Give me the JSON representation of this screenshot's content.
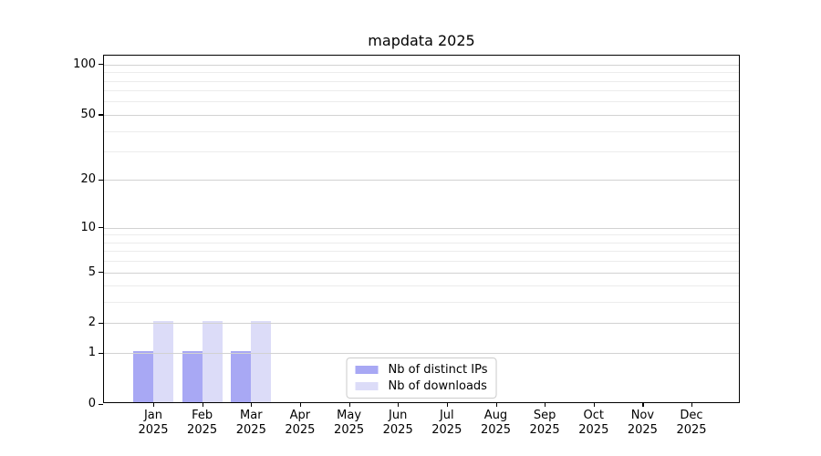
{
  "chart_data": {
    "type": "bar",
    "title": "mapdata 2025",
    "xlabel": "",
    "ylabel": "",
    "categories": [
      "Jan",
      "Feb",
      "Mar",
      "Apr",
      "May",
      "Jun",
      "Jul",
      "Aug",
      "Sep",
      "Oct",
      "Nov",
      "Dec"
    ],
    "xtick_year": "2025",
    "series": [
      {
        "name": "Nb of distinct IPs",
        "color": "#a8a8f4",
        "values": [
          1,
          1,
          1,
          0,
          0,
          0,
          0,
          0,
          0,
          0,
          0,
          0
        ]
      },
      {
        "name": "Nb of downloads",
        "color": "#dcdcf8",
        "values": [
          2,
          2,
          2,
          0,
          0,
          0,
          0,
          0,
          0,
          0,
          0,
          0
        ]
      }
    ],
    "yscale": "log1p",
    "ylim": [
      0,
      113
    ],
    "yticks": [
      0,
      1,
      2,
      5,
      10,
      20,
      50,
      100
    ],
    "yticks_minor": [
      3,
      4,
      6,
      7,
      8,
      9,
      30,
      40,
      60,
      70,
      80,
      90
    ],
    "grid": "horizontal",
    "grid_over_bars": true,
    "legend_position": "lower center",
    "colors": {
      "grid_major": "#d2d2d2",
      "grid_minor": "#ececec",
      "axis": "#000000",
      "background": "#ffffff",
      "text": "#000000"
    }
  }
}
